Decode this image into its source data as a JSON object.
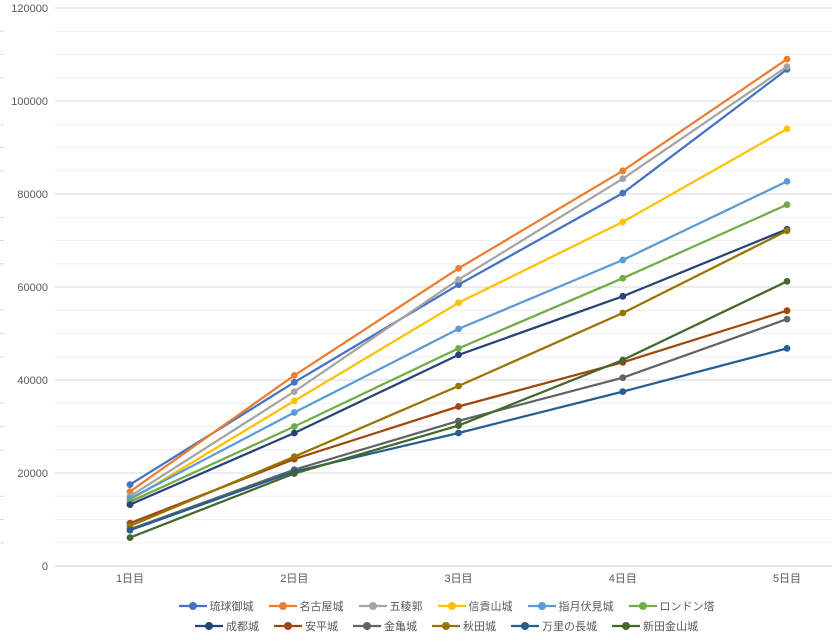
{
  "chart_data": {
    "type": "line",
    "title": "",
    "xlabel": "",
    "ylabel": "",
    "categories": [
      "1日目",
      "2日目",
      "3日目",
      "4日目",
      "5日目"
    ],
    "y_axis": {
      "min": 0,
      "max": 120000,
      "major_step": 20000,
      "minor_step": 5000,
      "tick_labels": [
        "0",
        "20000",
        "40000",
        "60000",
        "80000",
        "100000",
        "120000"
      ]
    },
    "grid": {
      "major": true,
      "minor": true
    },
    "legend_position": "bottom",
    "legend_rows": [
      6,
      6
    ],
    "series": [
      {
        "name": "琉球御城",
        "color": "#4472C4",
        "values": [
          17500,
          39500,
          60500,
          80200,
          106800
        ]
      },
      {
        "name": "名古屋城",
        "color": "#ED7D31",
        "values": [
          16000,
          41000,
          64000,
          85000,
          109000
        ]
      },
      {
        "name": "五稜郭",
        "color": "#A5A5A5",
        "values": [
          15000,
          37500,
          61600,
          83300,
          107400
        ]
      },
      {
        "name": "信貴山城",
        "color": "#FFC000",
        "values": [
          14200,
          35500,
          56600,
          74000,
          94000
        ]
      },
      {
        "name": "指月伏見城",
        "color": "#5B9BD5",
        "values": [
          14500,
          33000,
          51000,
          65800,
          82700
        ]
      },
      {
        "name": "ロンドン塔",
        "color": "#70AD47",
        "values": [
          13800,
          30000,
          46800,
          61900,
          77700
        ]
      },
      {
        "name": "成都城",
        "color": "#264478",
        "values": [
          13200,
          28600,
          45400,
          58000,
          72400
        ]
      },
      {
        "name": "安平城",
        "color": "#9E480E",
        "values": [
          9200,
          23000,
          34300,
          43800,
          54900
        ]
      },
      {
        "name": "金亀城",
        "color": "#636363",
        "values": [
          7900,
          20700,
          31200,
          40500,
          53100
        ]
      },
      {
        "name": "秋田城",
        "color": "#997300",
        "values": [
          8600,
          23500,
          38700,
          54400,
          72100
        ]
      },
      {
        "name": "万里の長城",
        "color": "#255E91",
        "values": [
          7700,
          20300,
          28600,
          37500,
          46800
        ]
      },
      {
        "name": "新田金山城",
        "color": "#43682B",
        "values": [
          6100,
          19900,
          30200,
          44300,
          61200
        ]
      }
    ],
    "colors": {
      "major_gridline": "#D9D9D9",
      "minor_gridline": "#EFEFEF",
      "axis_line": "#C9C9C9",
      "tick_label": "#595959",
      "background": "#FFFFFF"
    }
  }
}
